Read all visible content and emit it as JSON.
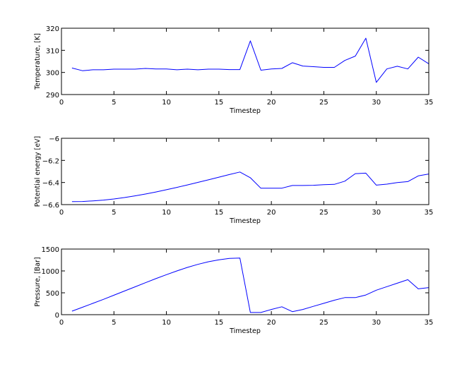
{
  "figure": {
    "background": "#ffffff",
    "line_color": "#0000ff",
    "axes_color": "#000000"
  },
  "chart_data": [
    {
      "type": "line",
      "title": "",
      "xlabel": "Timestep",
      "ylabel": "Temperature, [K]",
      "xlim": [
        0,
        35
      ],
      "ylim": [
        290,
        320
      ],
      "xticks": [
        0,
        5,
        10,
        15,
        20,
        25,
        30,
        35
      ],
      "yticks": [
        290,
        300,
        310,
        320
      ],
      "grid": false,
      "x": [
        1,
        2,
        3,
        4,
        5,
        6,
        7,
        8,
        9,
        10,
        11,
        12,
        13,
        14,
        15,
        16,
        17,
        18,
        19,
        20,
        21,
        22,
        23,
        24,
        25,
        26,
        27,
        28,
        29,
        30,
        31,
        32,
        33,
        34,
        35
      ],
      "series": [
        {
          "name": "Temperature",
          "color": "#0000ff",
          "values": [
            302.0,
            300.8,
            301.2,
            301.2,
            301.5,
            301.5,
            301.5,
            301.8,
            301.6,
            301.6,
            301.2,
            301.5,
            301.2,
            301.5,
            301.5,
            301.3,
            301.3,
            314.3,
            301.0,
            301.6,
            301.8,
            304.4,
            302.9,
            302.6,
            302.3,
            302.3,
            305.4,
            307.4,
            315.5,
            295.5,
            301.6,
            302.8,
            301.6,
            306.9,
            303.9
          ]
        }
      ]
    },
    {
      "type": "line",
      "title": "",
      "xlabel": "Timestep",
      "ylabel": "Potential energy [eV]",
      "xlim": [
        0,
        35
      ],
      "ylim": [
        -6.6,
        -6.0
      ],
      "xticks": [
        0,
        5,
        10,
        15,
        20,
        25,
        30,
        35
      ],
      "yticks": [
        -6.6,
        -6.4,
        -6.2,
        -6.0
      ],
      "grid": false,
      "x": [
        1,
        2,
        3,
        4,
        5,
        6,
        7,
        8,
        9,
        10,
        11,
        12,
        13,
        14,
        15,
        16,
        17,
        18,
        19,
        20,
        21,
        22,
        23,
        24,
        25,
        26,
        27,
        28,
        29,
        30,
        31,
        32,
        33,
        34,
        35
      ],
      "series": [
        {
          "name": "Potential energy",
          "color": "#0000ff",
          "values": [
            -6.573,
            -6.572,
            -6.566,
            -6.559,
            -6.549,
            -6.536,
            -6.521,
            -6.504,
            -6.486,
            -6.465,
            -6.444,
            -6.422,
            -6.399,
            -6.376,
            -6.352,
            -6.328,
            -6.305,
            -6.357,
            -6.452,
            -6.452,
            -6.451,
            -6.427,
            -6.427,
            -6.425,
            -6.42,
            -6.417,
            -6.388,
            -6.32,
            -6.315,
            -6.424,
            -6.415,
            -6.4,
            -6.392,
            -6.34,
            -6.323
          ]
        }
      ]
    },
    {
      "type": "line",
      "title": "",
      "xlabel": "Timestep",
      "ylabel": "Pressure, [Bar]",
      "xlim": [
        0,
        35
      ],
      "ylim": [
        0,
        1500
      ],
      "xticks": [
        0,
        5,
        10,
        15,
        20,
        25,
        30,
        35
      ],
      "yticks": [
        0,
        500,
        1000,
        1500
      ],
      "grid": false,
      "x": [
        1,
        2,
        3,
        4,
        5,
        6,
        7,
        8,
        9,
        10,
        11,
        12,
        13,
        14,
        15,
        16,
        17,
        18,
        19,
        20,
        21,
        22,
        23,
        24,
        25,
        26,
        27,
        28,
        29,
        30,
        31,
        32,
        33,
        34,
        35
      ],
      "series": [
        {
          "name": "Pressure",
          "color": "#0000ff",
          "values": [
            80,
            170,
            260,
            350,
            445,
            540,
            635,
            730,
            825,
            915,
            1000,
            1080,
            1150,
            1210,
            1255,
            1285,
            1295,
            50,
            50,
            120,
            180,
            70,
            120,
            190,
            260,
            330,
            390,
            390,
            450,
            560,
            640,
            720,
            800,
            590,
            620
          ]
        }
      ]
    }
  ]
}
